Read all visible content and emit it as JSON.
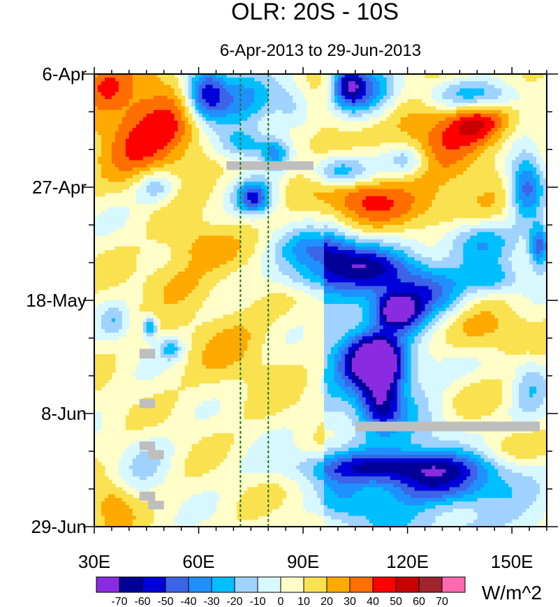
{
  "chart_data": {
    "type": "heatmap",
    "title": "OLR: 20S - 10S",
    "subtitle": "6-Apr-2013 to 29-Jun-2013",
    "xlabel": "",
    "ylabel": "",
    "xlim": [
      30,
      160
    ],
    "ylim_days": [
      0,
      84
    ],
    "x_ticks": [
      {
        "value": 30,
        "label": "30E"
      },
      {
        "value": 60,
        "label": "60E"
      },
      {
        "value": 90,
        "label": "90E"
      },
      {
        "value": 120,
        "label": "120E"
      },
      {
        "value": 150,
        "label": "150E"
      }
    ],
    "y_ticks": [
      {
        "day": 0,
        "label": "6-Apr"
      },
      {
        "day": 21,
        "label": "27-Apr"
      },
      {
        "day": 42,
        "label": "18-May"
      },
      {
        "day": 63,
        "label": "8-Jun"
      },
      {
        "day": 84,
        "label": "29-Jun"
      }
    ],
    "reference_lines_lon": [
      72,
      80
    ],
    "reference_line_color": "#1a7a1a",
    "missing_color": "#bebebe",
    "missing_patches": [
      {
        "lon": [
          68,
          93
        ],
        "day": [
          16.2,
          17.8
        ]
      },
      {
        "lon": [
          105,
          158
        ],
        "day": [
          64.5,
          66.3
        ]
      },
      {
        "lon": [
          43,
          47.5
        ],
        "day": [
          51,
          52.8
        ]
      },
      {
        "lon": [
          43,
          47.5
        ],
        "day": [
          60.3,
          62
        ]
      },
      {
        "lon": [
          43,
          47.5
        ],
        "day": [
          68.2,
          69.8
        ]
      },
      {
        "lon": [
          45.5,
          50
        ],
        "day": [
          69.8,
          71.5
        ]
      },
      {
        "lon": [
          43,
          47.5
        ],
        "day": [
          77.5,
          79.2
        ]
      },
      {
        "lon": [
          45.5,
          50
        ],
        "day": [
          79.2,
          80.8
        ]
      }
    ],
    "units": "W/m^2",
    "colorbar": {
      "labels": [
        "-70",
        "-60",
        "-50",
        "-40",
        "-30",
        "-20",
        "-10",
        "0",
        "10",
        "20",
        "30",
        "40",
        "50",
        "60",
        "70"
      ],
      "colors": [
        "#8a2be2",
        "#000099",
        "#0000d8",
        "#3c64e6",
        "#1e90ff",
        "#00bfff",
        "#a0d2ff",
        "#d8f8ff",
        "#fffdc8",
        "#fae150",
        "#ffaa00",
        "#ff6e00",
        "#ff0000",
        "#c80000",
        "#a0232d",
        "#ff69b4"
      ]
    },
    "features": [
      {
        "lon": 40,
        "day": 5,
        "w": 14,
        "h": 8,
        "v": 20
      },
      {
        "lon": 45,
        "day": 13,
        "w": 14,
        "h": 8,
        "v": 25
      },
      {
        "lon": 55,
        "day": 10,
        "w": 12,
        "h": 8,
        "v": 15
      },
      {
        "lon": 33,
        "day": 2,
        "w": 5,
        "h": 4,
        "v": 20
      },
      {
        "lon": 62,
        "day": 4,
        "w": 6,
        "h": 5,
        "v": -70
      },
      {
        "lon": 72,
        "day": 5,
        "w": 9,
        "h": 6,
        "v": -35
      },
      {
        "lon": 73,
        "day": 13,
        "w": 8,
        "h": 3,
        "v": -35
      },
      {
        "lon": 82,
        "day": 15,
        "w": 4,
        "h": 3,
        "v": -35
      },
      {
        "lon": 103,
        "day": 2,
        "w": 5,
        "h": 4,
        "v": -65
      },
      {
        "lon": 110,
        "day": 4,
        "w": 8,
        "h": 5,
        "v": -40
      },
      {
        "lon": 140,
        "day": 4,
        "w": 14,
        "h": 3,
        "v": -40
      },
      {
        "lon": 130,
        "day": 11,
        "w": 18,
        "h": 9,
        "v": 25
      },
      {
        "lon": 140,
        "day": 9,
        "w": 9,
        "h": 4,
        "v": 30
      },
      {
        "lon": 95,
        "day": 11,
        "w": 8,
        "h": 6,
        "v": 15
      },
      {
        "lon": 87,
        "day": 6,
        "w": 6,
        "h": 4,
        "v": -20
      },
      {
        "lon": 100,
        "day": 18,
        "w": 8,
        "h": 3,
        "v": -40
      },
      {
        "lon": 120,
        "day": 16,
        "w": 6,
        "h": 3,
        "v": -30
      },
      {
        "lon": 154,
        "day": 21,
        "w": 5,
        "h": 6,
        "v": -55
      },
      {
        "lon": 118,
        "day": 25,
        "w": 22,
        "h": 5,
        "v": 25
      },
      {
        "lon": 105,
        "day": 22,
        "w": 10,
        "h": 3,
        "v": 20
      },
      {
        "lon": 48,
        "day": 21,
        "w": 6,
        "h": 3,
        "v": -30
      },
      {
        "lon": 76,
        "day": 23,
        "w": 5,
        "h": 3,
        "v": -55
      },
      {
        "lon": 60,
        "day": 32,
        "w": 10,
        "h": 4,
        "v": 20
      },
      {
        "lon": 53,
        "day": 38,
        "w": 10,
        "h": 4,
        "v": 15
      },
      {
        "lon": 95,
        "day": 33,
        "w": 12,
        "h": 4,
        "v": -45
      },
      {
        "lon": 92,
        "day": 38,
        "w": 10,
        "h": 3,
        "v": -25
      },
      {
        "lon": 110,
        "day": 36,
        "w": 12,
        "h": 4,
        "v": -35
      },
      {
        "lon": 125,
        "day": 40,
        "w": 12,
        "h": 5,
        "v": -40
      },
      {
        "lon": 117,
        "day": 44,
        "w": 6,
        "h": 3,
        "v": -70
      },
      {
        "lon": 145,
        "day": 38,
        "w": 8,
        "h": 3,
        "v": -30
      },
      {
        "lon": 140,
        "day": 48,
        "w": 14,
        "h": 5,
        "v": 25
      },
      {
        "lon": 140,
        "day": 31,
        "w": 10,
        "h": 4,
        "v": -30
      },
      {
        "lon": 158,
        "day": 32,
        "w": 3,
        "h": 4,
        "v": -55
      },
      {
        "lon": 110,
        "day": 53,
        "w": 9,
        "h": 5,
        "v": -70
      },
      {
        "lon": 113,
        "day": 56,
        "w": 6,
        "h": 6,
        "v": -40
      },
      {
        "lon": 112,
        "day": 62,
        "w": 6,
        "h": 4,
        "v": -35
      },
      {
        "lon": 118,
        "day": 73,
        "w": 28,
        "h": 3,
        "v": -55
      },
      {
        "lon": 130,
        "day": 77,
        "w": 18,
        "h": 3,
        "v": -30
      },
      {
        "lon": 102,
        "day": 80,
        "w": 8,
        "h": 4,
        "v": -20
      },
      {
        "lon": 138,
        "day": 60,
        "w": 16,
        "h": 5,
        "v": 15
      },
      {
        "lon": 146,
        "day": 70,
        "w": 14,
        "h": 4,
        "v": 15
      },
      {
        "lon": 155,
        "day": 58,
        "w": 5,
        "h": 6,
        "v": -20
      },
      {
        "lon": 70,
        "day": 50,
        "w": 14,
        "h": 10,
        "v": 12
      },
      {
        "lon": 45,
        "day": 72,
        "w": 8,
        "h": 6,
        "v": -12
      },
      {
        "lon": 35,
        "day": 80,
        "w": 6,
        "h": 5,
        "v": 20
      },
      {
        "lon": 36,
        "day": 46,
        "w": 4,
        "h": 3,
        "v": -20
      },
      {
        "lon": 46,
        "day": 47,
        "w": 2,
        "h": 2,
        "v": -45
      },
      {
        "lon": 52,
        "day": 51,
        "w": 3,
        "h": 2,
        "v": -30
      }
    ]
  }
}
